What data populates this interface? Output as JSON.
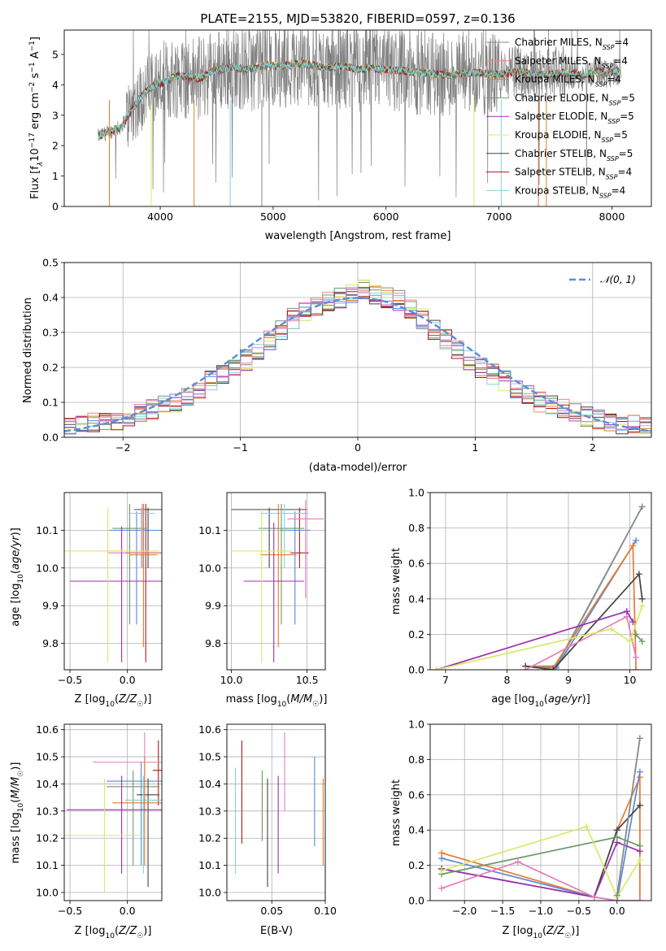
{
  "palette": {
    "Chabrier MILES": "#888888",
    "Salpeter MILES": "#f28a6a",
    "Kroupa MILES": "#e87a2c",
    "Chabrier ELODIE": "#6b9a6b",
    "Salpeter ELODIE": "#9b30b0",
    "Kroupa ELODIE": "#d9e86a",
    "Chabrier STELIB": "#444444",
    "Salpeter STELIB": "#b01818",
    "Kroupa STELIB": "#7fd4dc",
    "extra_blue": "#5b88d8",
    "extra_pink": "#e47fb8",
    "gauss": "#5b8dd8"
  },
  "chart_data": [
    {
      "id": "spectrum",
      "type": "line",
      "title": "PLATE=2155, MJD=53820, FIBERID=0597, z=0.136",
      "xlabel": "wavelength [Angstrom, rest frame]",
      "ylabel": "Flux [f_λ 10^-17 erg cm^-2 s^-1 A^-1]",
      "ylabel_parts": {
        "a": "Flux [f",
        "b": "λ",
        "c": "10",
        "d": "−17",
        "e": " erg cm",
        "f": "−2",
        "g": " s",
        "h": "−1",
        "i": " A",
        "j": "−1",
        "k": "]"
      },
      "xlim": [
        3150,
        8350
      ],
      "ylim": [
        0,
        5.8
      ],
      "xticks": [
        "4000",
        "5000",
        "6000",
        "7000",
        "8000"
      ],
      "xtick_values": [
        4000,
        5000,
        6000,
        7000,
        8000
      ],
      "yticks": [
        "0",
        "1",
        "2",
        "3",
        "4",
        "5"
      ],
      "ytick_values": [
        0,
        1,
        2,
        3,
        4,
        5
      ],
      "grid": false,
      "legend": "top-right",
      "legend_entries": [
        {
          "name": "Chabrier MILES",
          "n": "4"
        },
        {
          "name": "Salpeter MILES",
          "n": "4"
        },
        {
          "name": "Kroupa MILES",
          "n": "4"
        },
        {
          "name": "Chabrier ELODIE",
          "n": "5"
        },
        {
          "name": "Salpeter ELODIE",
          "n": "5"
        },
        {
          "name": "Kroupa ELODIE",
          "n": "5"
        },
        {
          "name": "Chabrier STELIB",
          "n": "5"
        },
        {
          "name": "Salpeter STELIB",
          "n": "4"
        },
        {
          "name": "Kroupa STELIB",
          "n": "4"
        }
      ],
      "nssp_label": "N",
      "nssp_sub": "SSP",
      "model_points": {
        "x": [
          3450,
          3550,
          3650,
          3750,
          3850,
          3950,
          4050,
          4150,
          4250,
          4350,
          4450,
          4550,
          4650,
          4750,
          4850,
          4950,
          5050,
          5150,
          5250,
          5350,
          5450,
          5550,
          5650,
          5750,
          5850,
          5950,
          6050,
          6150,
          6250,
          6350,
          6450,
          6550,
          6650,
          6750,
          6850,
          6950,
          7050,
          7150,
          7250,
          7350,
          7450,
          7550,
          7650,
          7750,
          7850,
          7950,
          8050
        ],
        "y": [
          2.3,
          2.45,
          2.6,
          3.2,
          3.7,
          4.0,
          4.1,
          4.3,
          4.25,
          4.2,
          4.45,
          4.5,
          4.6,
          4.5,
          4.55,
          4.65,
          4.6,
          4.65,
          4.7,
          4.65,
          4.55,
          4.6,
          4.6,
          4.5,
          4.55,
          4.5,
          4.5,
          4.45,
          4.4,
          4.4,
          4.35,
          4.3,
          4.35,
          4.4,
          4.4,
          4.35,
          4.35,
          4.45,
          4.4,
          4.3,
          4.35,
          4.4,
          4.35,
          4.3,
          4.45,
          4.4,
          4.45
        ]
      }
    },
    {
      "id": "residuals",
      "type": "histogram",
      "xlabel": "(data-model)/error",
      "ylabel": "Normed distribution",
      "xlim": [
        -2.5,
        2.5
      ],
      "ylim": [
        0,
        0.5
      ],
      "xticks": [
        "−2",
        "−1",
        "0",
        "1",
        "2"
      ],
      "xtick_values": [
        -2,
        -1,
        0,
        1,
        2
      ],
      "yticks": [
        "0.0",
        "0.1",
        "0.2",
        "0.3",
        "0.4",
        "0.5"
      ],
      "ytick_values": [
        0,
        0.1,
        0.2,
        0.3,
        0.4,
        0.5
      ],
      "grid": true,
      "legend": "top-right",
      "legend_label": "𝒩(0, 1)",
      "bin_width": 0.1,
      "base_shape": [
        0.03,
        0.035,
        0.04,
        0.045,
        0.05,
        0.06,
        0.07,
        0.08,
        0.09,
        0.1,
        0.12,
        0.14,
        0.16,
        0.18,
        0.2,
        0.22,
        0.25,
        0.28,
        0.31,
        0.34,
        0.36,
        0.38,
        0.39,
        0.4,
        0.41,
        0.42,
        0.41,
        0.4,
        0.39,
        0.37,
        0.34,
        0.31,
        0.28,
        0.25,
        0.22,
        0.2,
        0.18,
        0.16,
        0.14,
        0.12,
        0.1,
        0.09,
        0.08,
        0.07,
        0.06,
        0.05,
        0.045,
        0.04,
        0.035,
        0.03
      ]
    },
    {
      "id": "age_vs_Z",
      "type": "errorbar",
      "xlabel": "Z [log10(Z/Z☉)]",
      "ylabel": "age [log10(age/yr)]",
      "xlim": [
        -0.55,
        0.3
      ],
      "ylim": [
        9.73,
        10.2
      ],
      "xticks": [
        "−0.5",
        "0.0"
      ],
      "xtick_values": [
        -0.5,
        0.0
      ],
      "yticks": [
        "9.8",
        "9.9",
        "10.0",
        "10.1"
      ],
      "ytick_values": [
        9.8,
        9.9,
        10.0,
        10.1
      ],
      "grid": true,
      "points": [
        {
          "c": "#b01818",
          "x": 0.16,
          "y": 10.04,
          "xe": 0.18,
          "ylo": 9.75,
          "yhi": 10.17
        },
        {
          "c": "#5b88d8",
          "x": 0.08,
          "y": 10.1,
          "xe": 0.24,
          "ylo": 9.85,
          "yhi": 10.15
        },
        {
          "c": "#444444",
          "x": 0.18,
          "y": 10.155,
          "xe": 0.12,
          "ylo": 10.0,
          "yhi": 10.16
        },
        {
          "c": "#6b9a6b",
          "x": 0.02,
          "y": 10.105,
          "xe": 0.15,
          "ylo": 9.85,
          "yhi": 10.17
        },
        {
          "c": "#7fd4dc",
          "x": 0.12,
          "y": 10.145,
          "xe": 0.12,
          "ylo": 10.0,
          "yhi": 10.16
        },
        {
          "c": "#e87a2c",
          "x": 0.14,
          "y": 10.035,
          "xe": 0.12,
          "ylo": 9.79,
          "yhi": 10.17
        },
        {
          "c": "#e47fb8",
          "x": 0.13,
          "y": 10.04,
          "xe": 0.3,
          "ylo": 10.0,
          "yhi": 10.17
        },
        {
          "c": "#9b30b0",
          "x": -0.05,
          "y": 9.965,
          "xe": 0.45,
          "ylo": 9.75,
          "yhi": 10.11
        },
        {
          "c": "#d9e86a",
          "x": -0.17,
          "y": 10.045,
          "xe": 0.45,
          "ylo": 9.75,
          "yhi": 10.16
        }
      ]
    },
    {
      "id": "age_vs_mass",
      "type": "errorbar",
      "xlabel": "mass [log10(M/M☉)]",
      "xlim": [
        9.97,
        10.62
      ],
      "ylim": [
        9.73,
        10.2
      ],
      "xticks": [
        "10.0",
        "10.5"
      ],
      "xtick_values": [
        10.0,
        10.5
      ],
      "yticks": [
        "9.8",
        "9.9",
        "10.0",
        "10.1"
      ],
      "ytick_values": [
        9.8,
        9.9,
        10.0,
        10.1
      ],
      "grid": true,
      "points": [
        {
          "c": "#b01818",
          "x": 10.45,
          "y": 10.04,
          "xe": 0.06,
          "ylo": 10.0,
          "yhi": 10.16
        },
        {
          "c": "#444444",
          "x": 10.25,
          "y": 10.155,
          "xe": 0.25,
          "ylo": 10.0,
          "yhi": 10.16
        },
        {
          "c": "#5b88d8",
          "x": 10.42,
          "y": 10.1,
          "xe": 0.1,
          "ylo": 9.85,
          "yhi": 10.15
        },
        {
          "c": "#6b9a6b",
          "x": 10.33,
          "y": 10.105,
          "xe": 0.15,
          "ylo": 9.85,
          "yhi": 10.17
        },
        {
          "c": "#7fd4dc",
          "x": 10.35,
          "y": 10.145,
          "xe": 0.16,
          "ylo": 10.0,
          "yhi": 10.17
        },
        {
          "c": "#e87a2c",
          "x": 10.31,
          "y": 10.035,
          "xe": 0.12,
          "ylo": 9.79,
          "yhi": 10.17
        },
        {
          "c": "#e47fb8",
          "x": 10.49,
          "y": 10.13,
          "xe": 0.12,
          "ylo": 9.92,
          "yhi": 10.18
        },
        {
          "c": "#9b30b0",
          "x": 10.28,
          "y": 9.965,
          "xe": 0.2,
          "ylo": 9.75,
          "yhi": 10.12
        },
        {
          "c": "#d9e86a",
          "x": 10.2,
          "y": 10.045,
          "xe": 0.2,
          "ylo": 9.75,
          "yhi": 10.16
        }
      ]
    },
    {
      "id": "weight_vs_age",
      "type": "line",
      "xlabel": "age [log10(age/yr)]",
      "ylabel": "mass weight",
      "xlim": [
        6.75,
        10.35
      ],
      "ylim": [
        0,
        1.0
      ],
      "xticks": [
        "7",
        "8",
        "9",
        "10"
      ],
      "xtick_values": [
        7,
        8,
        9,
        10
      ],
      "yticks": [
        "0.0",
        "0.2",
        "0.4",
        "0.6",
        "0.8",
        "1.0"
      ],
      "ytick_values": [
        0,
        0.2,
        0.4,
        0.6,
        0.8,
        1.0
      ],
      "grid": true,
      "series": [
        {
          "c": "#7fd4dc",
          "x": [
            8.3,
            8.8,
            10.2
          ],
          "y": [
            0.02,
            0.01,
            0.92
          ]
        },
        {
          "c": "#888888",
          "x": [
            8.3,
            8.8,
            10.2
          ],
          "y": [
            0.02,
            0.02,
            0.92
          ]
        },
        {
          "c": "#5b88d8",
          "x": [
            8.8,
            10.1
          ],
          "y": [
            0.01,
            0.73
          ]
        },
        {
          "c": "#e87a2c",
          "x": [
            8.3,
            8.75,
            10.05,
            10.1
          ],
          "y": [
            0.02,
            0.01,
            0.7,
            0.0
          ]
        },
        {
          "c": "#444444",
          "x": [
            8.3,
            8.75,
            10.15,
            10.2
          ],
          "y": [
            0.02,
            0.0,
            0.54,
            0.4
          ]
        },
        {
          "c": "#e47fb8",
          "x": [
            8.3,
            9.95,
            10.1
          ],
          "y": [
            0.0,
            0.3,
            0.07
          ]
        },
        {
          "c": "#9b30b0",
          "x": [
            6.85,
            9.95,
            10.05
          ],
          "y": [
            0.0,
            0.33,
            0.27
          ]
        },
        {
          "c": "#d9e86a",
          "x": [
            6.85,
            9.7,
            10.0,
            10.2
          ],
          "y": [
            0.0,
            0.23,
            0.16,
            0.36
          ]
        },
        {
          "c": "#6b9a6b",
          "x": [
            10.1,
            10.2
          ],
          "y": [
            0.2,
            0.16
          ]
        }
      ]
    },
    {
      "id": "mass_vs_Z",
      "type": "errorbar",
      "xlabel": "Z [log10(Z/Z☉)]",
      "ylabel": "mass [log10(M/M☉)]",
      "xlim": [
        -0.55,
        0.3
      ],
      "ylim": [
        9.97,
        10.62
      ],
      "xticks": [
        "−0.5",
        "0.0"
      ],
      "xtick_values": [
        -0.5,
        0.0
      ],
      "yticks": [
        "10.0",
        "10.1",
        "10.2",
        "10.3",
        "10.4",
        "10.5",
        "10.6"
      ],
      "ytick_values": [
        10.0,
        10.1,
        10.2,
        10.3,
        10.4,
        10.5,
        10.6
      ],
      "grid": true,
      "points": [
        {
          "c": "#b01818",
          "x": 0.27,
          "y": 10.45,
          "xe": 0.05,
          "ylo": 10.32,
          "yhi": 10.56
        },
        {
          "c": "#e47fb8",
          "x": 0.15,
          "y": 10.48,
          "xe": 0.45,
          "ylo": 10.29,
          "yhi": 10.59
        },
        {
          "c": "#5b88d8",
          "x": 0.12,
          "y": 10.41,
          "xe": 0.3,
          "ylo": 10.1,
          "yhi": 10.48
        },
        {
          "c": "#6b9a6b",
          "x": 0.05,
          "y": 10.39,
          "xe": 0.23,
          "ylo": 10.1,
          "yhi": 10.45
        },
        {
          "c": "#444444",
          "x": 0.18,
          "y": 10.36,
          "xe": 0.1,
          "ylo": 10.02,
          "yhi": 10.42
        },
        {
          "c": "#7fd4dc",
          "x": 0.14,
          "y": 10.34,
          "xe": 0.16,
          "ylo": 10.07,
          "yhi": 10.43
        },
        {
          "c": "#e87a2c",
          "x": 0.15,
          "y": 10.33,
          "xe": 0.28,
          "ylo": 10.1,
          "yhi": 10.5
        },
        {
          "c": "#9b30b0",
          "x": -0.05,
          "y": 10.305,
          "xe": 0.48,
          "ylo": 10.07,
          "yhi": 10.43
        },
        {
          "c": "#d9e86a",
          "x": -0.2,
          "y": 10.21,
          "xe": 0.35,
          "ylo": 10.0,
          "yhi": 10.42
        }
      ]
    },
    {
      "id": "mass_vs_ebv",
      "type": "errorbar",
      "xlabel": "E(B-V)",
      "xlim": [
        0.008,
        0.1
      ],
      "ylim": [
        9.97,
        10.62
      ],
      "xticks": [
        "0.05",
        "0.10"
      ],
      "xtick_values": [
        0.05,
        0.1
      ],
      "yticks": [
        "10.0",
        "10.1",
        "10.2",
        "10.3",
        "10.4",
        "10.5",
        "10.6"
      ],
      "ytick_values": [
        10.0,
        10.1,
        10.2,
        10.3,
        10.4,
        10.5,
        10.6
      ],
      "grid": true,
      "points": [
        {
          "c": "#7fd4dc",
          "x": 0.016,
          "y": 10.28,
          "ylo": 10.07,
          "yhi": 10.46
        },
        {
          "c": "#b01818",
          "x": 0.022,
          "y": 10.37,
          "ylo": 10.18,
          "yhi": 10.56
        },
        {
          "c": "#6b9a6b",
          "x": 0.041,
          "y": 10.32,
          "ylo": 10.19,
          "yhi": 10.45
        },
        {
          "c": "#444444",
          "x": 0.046,
          "y": 10.23,
          "ylo": 10.02,
          "yhi": 10.42
        },
        {
          "c": "#9b30b0",
          "x": 0.056,
          "y": 10.27,
          "ylo": 10.07,
          "yhi": 10.43
        },
        {
          "c": "#e47fb8",
          "x": 0.062,
          "y": 10.44,
          "ylo": 10.3,
          "yhi": 10.59
        },
        {
          "c": "#5b88d8",
          "x": 0.09,
          "y": 10.33,
          "ylo": 10.17,
          "yhi": 10.5
        },
        {
          "c": "#e87a2c",
          "x": 0.098,
          "y": 10.26,
          "ylo": 10.1,
          "yhi": 10.42
        }
      ]
    },
    {
      "id": "weight_vs_Z",
      "type": "line",
      "xlabel": "Z [log10(Z/Z☉)]",
      "ylabel": "mass weight",
      "xlim": [
        -2.45,
        0.45
      ],
      "ylim": [
        0,
        1.0
      ],
      "xticks": [
        "−2.0",
        "−1.5",
        "−1.0",
        "−0.5",
        "0.0"
      ],
      "xtick_values": [
        -2.0,
        -1.5,
        -1.0,
        -0.5,
        0.0
      ],
      "yticks": [
        "0.0",
        "0.2",
        "0.4",
        "0.6",
        "0.8",
        "1.0"
      ],
      "ytick_values": [
        0,
        0.2,
        0.4,
        0.6,
        0.8,
        1.0
      ],
      "grid": true,
      "series": [
        {
          "c": "#e87a2c",
          "x": [
            -2.3,
            -0.3,
            0.0,
            0.3,
            0.3
          ],
          "y": [
            0.27,
            0.02,
            0.4,
            0.7,
            0.0
          ]
        },
        {
          "c": "#5b88d8",
          "x": [
            -2.3,
            -0.3,
            0.0,
            0.3
          ],
          "y": [
            0.24,
            0.02,
            0.0,
            0.73
          ]
        },
        {
          "c": "#444444",
          "x": [
            -2.3,
            -0.3,
            0.0,
            0.3
          ],
          "y": [
            0.18,
            0.02,
            0.4,
            0.54
          ]
        },
        {
          "c": "#9b30b0",
          "x": [
            -2.3,
            -0.3,
            0.0,
            0.3
          ],
          "y": [
            0.18,
            0.02,
            0.33,
            0.28
          ]
        },
        {
          "c": "#6b9a6b",
          "x": [
            -2.3,
            0.0,
            0.3
          ],
          "y": [
            0.15,
            0.36,
            0.31
          ]
        },
        {
          "c": "#d9e86a",
          "x": [
            -2.3,
            -0.4,
            0.0,
            0.3
          ],
          "y": [
            0.17,
            0.42,
            0.02,
            0.23
          ]
        },
        {
          "c": "#e47fb8",
          "x": [
            -2.3,
            -1.3,
            -0.3,
            0.0,
            0.3
          ],
          "y": [
            0.07,
            0.22,
            0.02,
            0.0,
            0.0
          ]
        },
        {
          "c": "#7fd4dc",
          "x": [
            0.0,
            0.3
          ],
          "y": [
            0.03,
            0.92
          ]
        },
        {
          "c": "#888888",
          "x": [
            0.0,
            0.3
          ],
          "y": [
            0.03,
            0.92
          ]
        }
      ]
    }
  ]
}
